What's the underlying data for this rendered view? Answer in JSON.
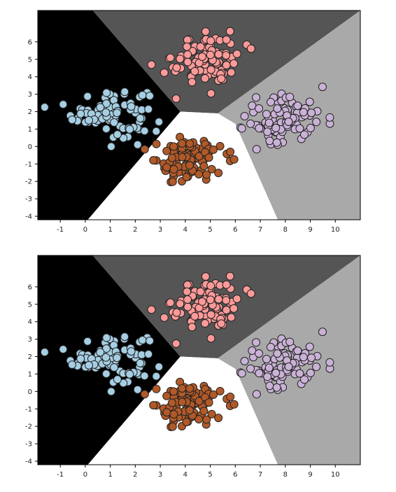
{
  "chart_data": [
    {
      "type": "scatter",
      "title": "",
      "xlabel": "",
      "ylabel": "",
      "xlim": [
        -1.9,
        11
      ],
      "ylim": [
        -4.2,
        7.8
      ],
      "xticks": [
        -1,
        0,
        1,
        2,
        3,
        4,
        5,
        6,
        7,
        8,
        9,
        10
      ],
      "yticks": [
        -4,
        -3,
        -2,
        -1,
        0,
        1,
        2,
        3,
        4,
        5,
        6
      ],
      "grid": false,
      "legend": "none",
      "background": "decision regions",
      "regions": [
        {
          "name": "cluster-left",
          "color": "#000000"
        },
        {
          "name": "cluster-top",
          "color": "#555555"
        },
        {
          "name": "cluster-right",
          "color": "#a9a9a9"
        },
        {
          "name": "cluster-bottom",
          "color": "#ffffff"
        }
      ],
      "series": [
        {
          "color": "#a6cee3",
          "center": [
            1.0,
            2.0
          ],
          "spread": [
            0.75,
            0.7
          ],
          "count": 100
        },
        {
          "color": "#fb9a99",
          "center": [
            4.8,
            5.0
          ],
          "spread": [
            0.65,
            0.75
          ],
          "count": 100
        },
        {
          "color": "#cab2d6",
          "center": [
            7.9,
            1.5
          ],
          "spread": [
            0.85,
            0.75
          ],
          "count": 100
        },
        {
          "color": "#b15928",
          "center": [
            4.0,
            -0.8
          ],
          "spread": [
            0.7,
            0.65
          ],
          "count": 100
        }
      ]
    },
    {
      "type": "scatter",
      "title": "",
      "xlabel": "",
      "ylabel": "",
      "xlim": [
        -1.9,
        11
      ],
      "ylim": [
        -4.2,
        7.8
      ],
      "xticks": [
        -1,
        0,
        1,
        2,
        3,
        4,
        5,
        6,
        7,
        8,
        9,
        10
      ],
      "yticks": [
        -4,
        -3,
        -2,
        -1,
        0,
        1,
        2,
        3,
        4,
        5,
        6
      ],
      "grid": false,
      "legend": "none",
      "background": "decision regions",
      "regions": [
        {
          "name": "cluster-left",
          "color": "#000000"
        },
        {
          "name": "cluster-top",
          "color": "#555555"
        },
        {
          "name": "cluster-right",
          "color": "#a9a9a9"
        },
        {
          "name": "cluster-bottom",
          "color": "#ffffff"
        }
      ],
      "series": [
        {
          "color": "#a6cee3",
          "center": [
            1.0,
            2.0
          ],
          "spread": [
            0.75,
            0.7
          ],
          "count": 100
        },
        {
          "color": "#fb9a99",
          "center": [
            4.8,
            5.0
          ],
          "spread": [
            0.65,
            0.75
          ],
          "count": 100
        },
        {
          "color": "#cab2d6",
          "center": [
            7.9,
            1.5
          ],
          "spread": [
            0.85,
            0.75
          ],
          "count": 100
        },
        {
          "color": "#b15928",
          "center": [
            4.0,
            -0.8
          ],
          "spread": [
            0.7,
            0.65
          ],
          "count": 100
        }
      ]
    }
  ]
}
